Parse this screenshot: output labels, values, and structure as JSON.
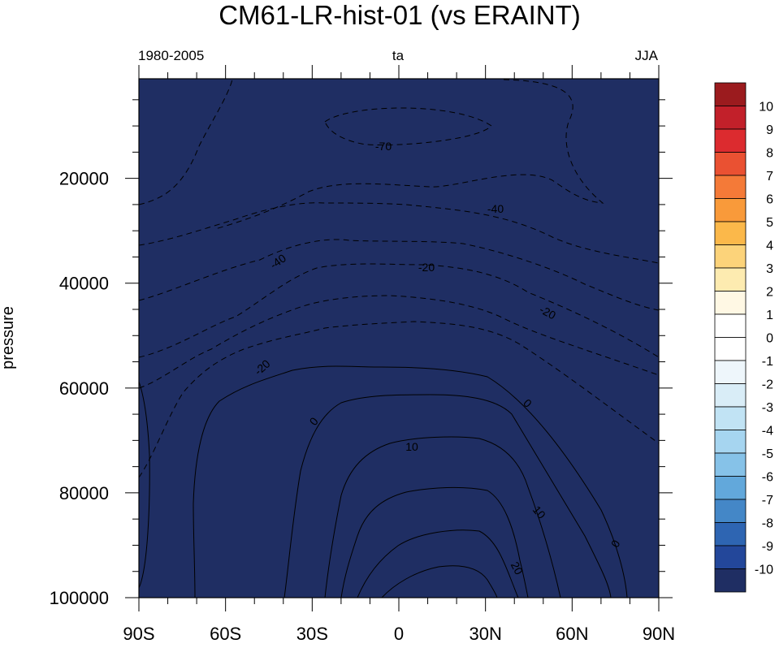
{
  "chart_data": {
    "type": "heatmap",
    "title": "CM61-LR-hist-01  (vs ERAINT)",
    "left_subtitle": "1980-2005",
    "center_subtitle": "ta",
    "right_subtitle": "JJA",
    "xlabel": "",
    "ylabel": "pressure",
    "x_ticks": [
      "90S",
      "60S",
      "30S",
      "0",
      "30N",
      "60N",
      "90N"
    ],
    "x_tick_values": [
      -90,
      -60,
      -30,
      0,
      30,
      60,
      90
    ],
    "xlim": [
      -90,
      90
    ],
    "y_ticks": [
      "20000",
      "40000",
      "60000",
      "80000",
      "100000"
    ],
    "y_tick_values": [
      20000,
      40000,
      60000,
      80000,
      100000
    ],
    "ylim": [
      1000,
      100000
    ],
    "y_inverted": true,
    "fill_color": "#1f2e63",
    "colorbar_levels": [
      10,
      9,
      8,
      7,
      6,
      5,
      4,
      3,
      2,
      1,
      0,
      -1,
      -2,
      -3,
      -4,
      -5,
      -6,
      -7,
      -8,
      -9,
      -10
    ],
    "colorbar_colors": [
      "#9b1b1e",
      "#c2202a",
      "#dc2b2f",
      "#ea5132",
      "#f47a38",
      "#f99a3a",
      "#fbb84a",
      "#fcd37a",
      "#fdebb0",
      "#fff8e4",
      "#ffffff",
      "#ffffff",
      "#eef6fb",
      "#d9edf7",
      "#c1e3f4",
      "#a6d5f0",
      "#86c2e8",
      "#62a8db",
      "#4487c7",
      "#2e65b2",
      "#23479a",
      "#1f2e63"
    ],
    "contour_labels": [
      "-70",
      "-40",
      "-40",
      "-20",
      "-20",
      "-20",
      "0",
      "0",
      "0",
      "10",
      "10",
      "20"
    ]
  }
}
